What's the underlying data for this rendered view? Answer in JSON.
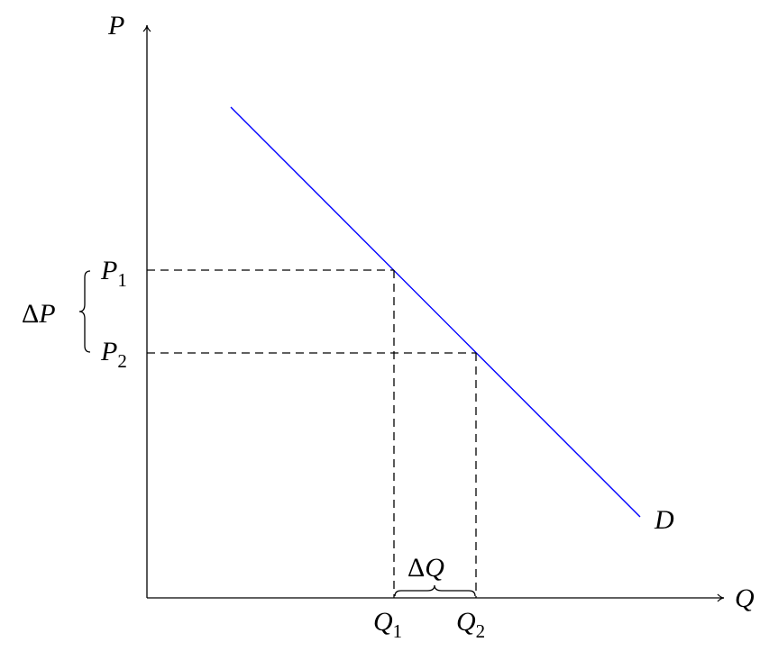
{
  "axes": {
    "y_label": "P",
    "x_label": "Q"
  },
  "curve": {
    "label": "D",
    "color": "#0000ff"
  },
  "levels": {
    "p1": {
      "base": "P",
      "sub": "1"
    },
    "p2": {
      "base": "P",
      "sub": "2"
    },
    "q1": {
      "base": "Q",
      "sub": "1"
    },
    "q2": {
      "base": "Q",
      "sub": "2"
    }
  },
  "braces": {
    "delta_p": {
      "delta": "Δ",
      "var": "P"
    },
    "delta_q": {
      "delta": "Δ",
      "var": "Q"
    }
  }
}
